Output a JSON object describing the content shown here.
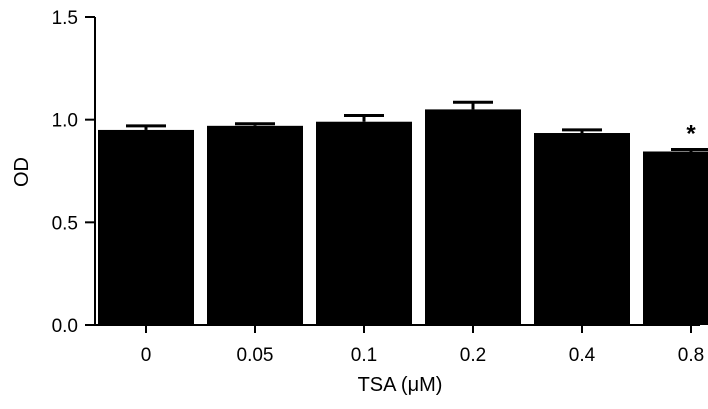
{
  "chart_data": {
    "type": "bar",
    "title": "",
    "xlabel": "TSA (μM)",
    "ylabel": "OD",
    "categories": [
      "0",
      "0.05",
      "0.1",
      "0.2",
      "0.4",
      "0.8"
    ],
    "values": [
      0.95,
      0.97,
      0.99,
      1.05,
      0.935,
      0.845
    ],
    "errors": [
      0.02,
      0.01,
      0.03,
      0.035,
      0.015,
      0.01
    ],
    "annotations": [
      "",
      "",
      "",
      "",
      "",
      "*"
    ],
    "ylim": [
      0,
      1.5
    ],
    "yticks": [
      0.0,
      0.5,
      1.0,
      1.5
    ],
    "ytick_labels": [
      "0.0",
      "0.5",
      "1.0",
      "1.5"
    ],
    "grid": false,
    "colors": {
      "bar": "#000000",
      "axis": "#000000"
    }
  }
}
